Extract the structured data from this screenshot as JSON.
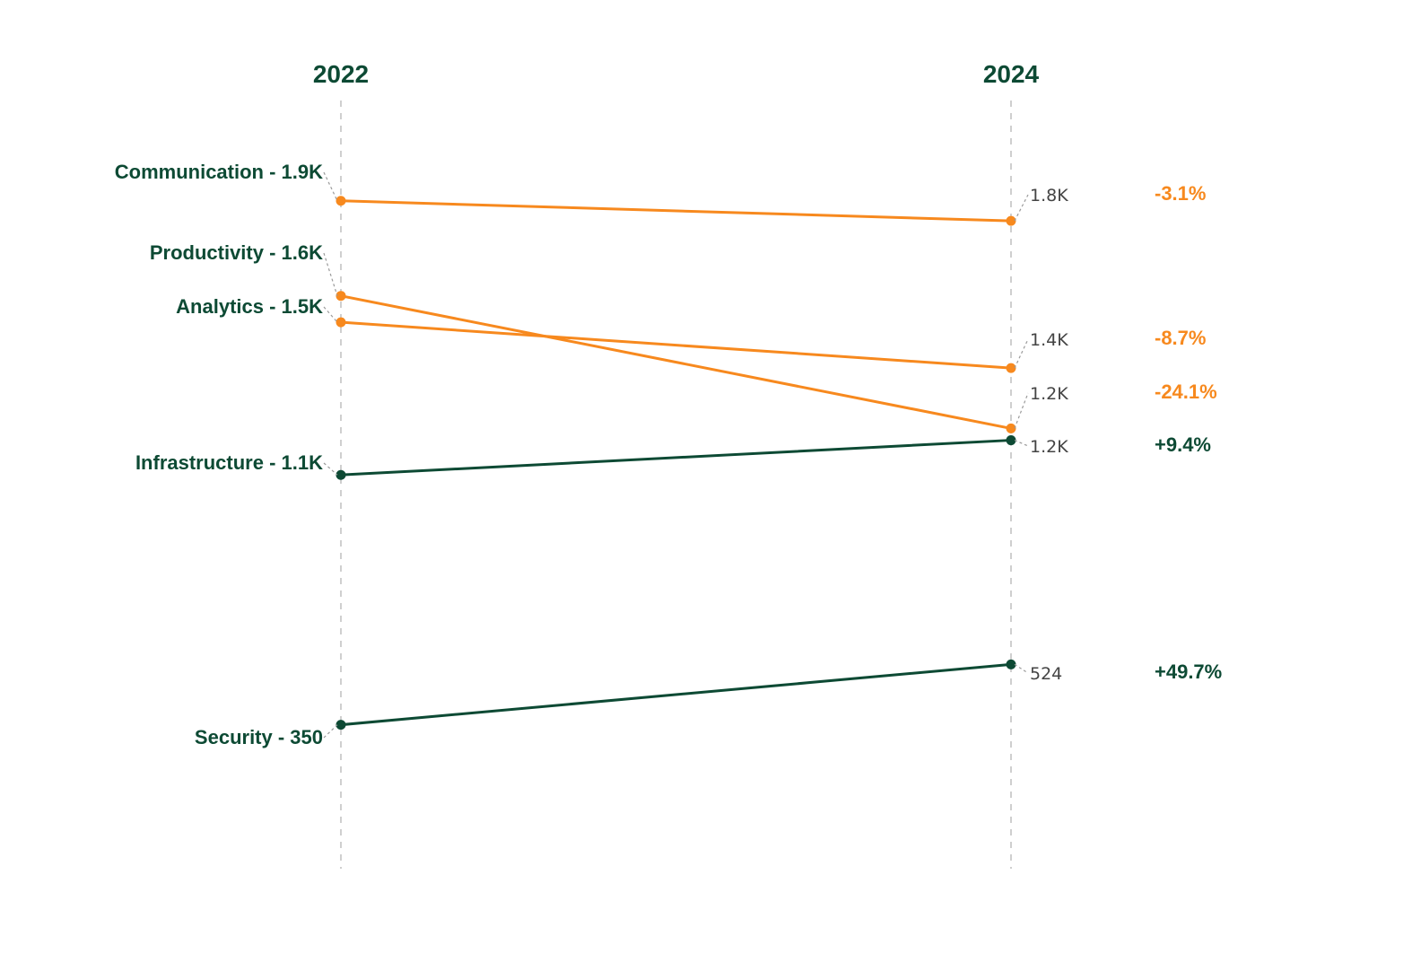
{
  "chart_data": {
    "type": "slope",
    "x": [
      "2022",
      "2024"
    ],
    "colors": {
      "decline": "#f7891e",
      "growth": "#0d4a34"
    },
    "series": [
      {
        "name": "Communication",
        "start": 1860,
        "end": 1802,
        "start_label": "Communication - 1.9K",
        "end_label": "1.8K",
        "change_label": "-3.1%",
        "trend": "decline"
      },
      {
        "name": "Productivity",
        "start": 1586,
        "end": 1204,
        "start_label": "Productivity - 1.6K",
        "end_label": "1.2K",
        "change_label": "-24.1%",
        "trend": "decline"
      },
      {
        "name": "Analytics",
        "start": 1510,
        "end": 1378,
        "start_label": "Analytics - 1.5K",
        "end_label": "1.4K",
        "change_label": "-8.7%",
        "trend": "decline"
      },
      {
        "name": "Infrastructure",
        "start": 1070,
        "end": 1170,
        "start_label": "Infrastructure - 1.1K",
        "end_label": "1.2K",
        "change_label": "+9.4%",
        "trend": "growth"
      },
      {
        "name": "Security",
        "start": 350,
        "end": 524,
        "start_label": "Security - 350",
        "end_label": "524",
        "change_label": "+49.7%",
        "trend": "growth"
      }
    ],
    "ylim": [
      0,
      2200
    ],
    "grid": false
  }
}
